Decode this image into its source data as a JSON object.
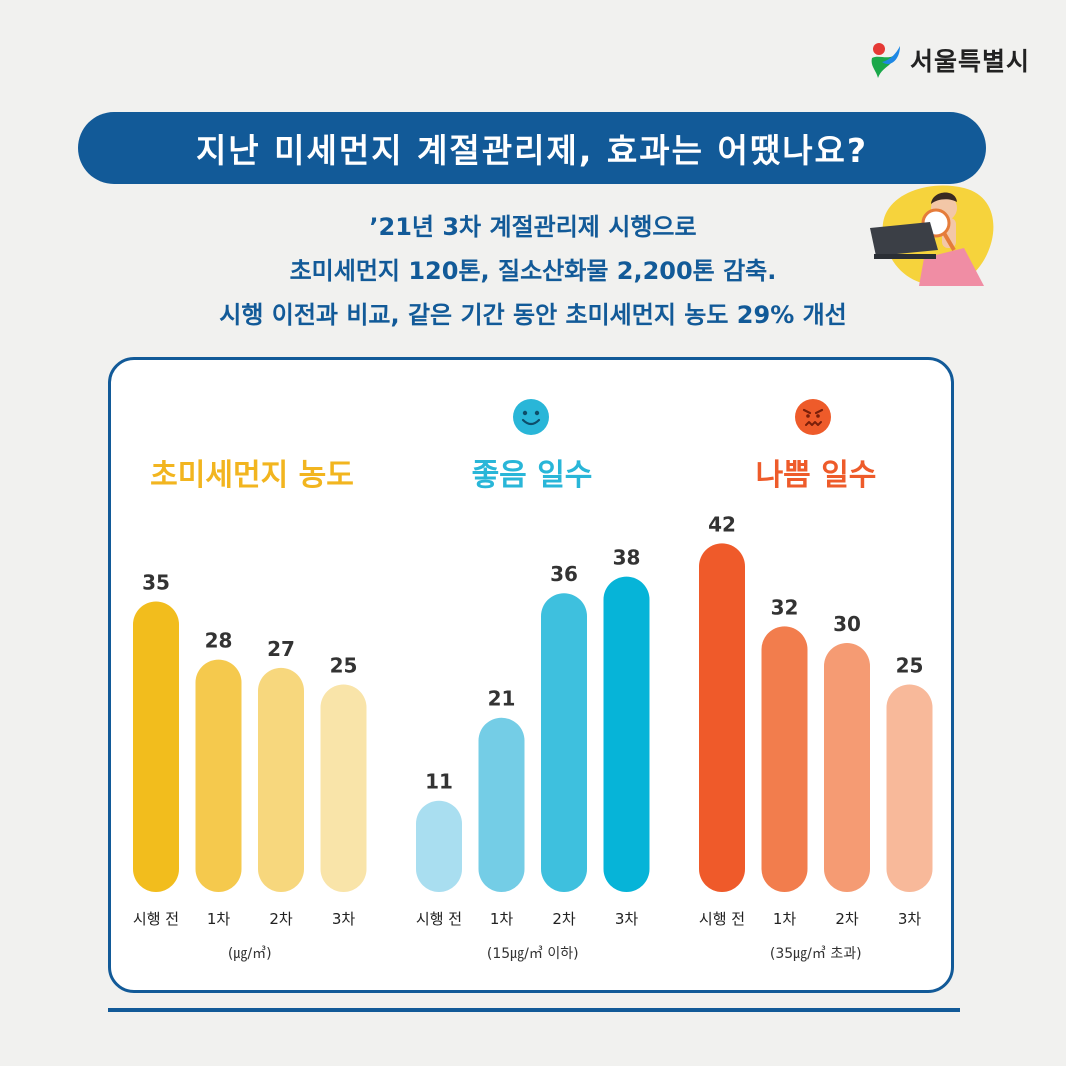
{
  "logo": {
    "text": "서울특별시"
  },
  "banner": {
    "title": "지난 미세먼지 계절관리제, 효과는 어땠나요?"
  },
  "subtitle": {
    "line1": "’21년 3차 계절관리제 시행으로",
    "line2": "초미세먼지 120톤, 질소산화물 2,200톤 감축.",
    "line3": "시행 이전과 비교, 같은 기간 동안 초미세먼지 농도 29% 개선"
  },
  "chart_data": [
    {
      "type": "bar",
      "title": "초미세먼지 농도",
      "categories": [
        "시행 전",
        "1차",
        "2차",
        "3차"
      ],
      "values": [
        35,
        28,
        27,
        25
      ],
      "unit_note": "(㎍/㎥)",
      "colors": [
        "#f2bd1d",
        "#f5c94d",
        "#f7d77d",
        "#f9e4a9"
      ],
      "title_color": "#f2b51f"
    },
    {
      "type": "bar",
      "title": "좋음 일수",
      "categories": [
        "시행 전",
        "1차",
        "2차",
        "3차"
      ],
      "values": [
        11,
        21,
        36,
        38
      ],
      "unit_note": "(15㎍/㎥ 이하)",
      "colors": [
        "#a9def0",
        "#74cde6",
        "#3ec0de",
        "#06b4d8"
      ],
      "title_color": "#29b6d8"
    },
    {
      "type": "bar",
      "title": "나쁨 일수",
      "categories": [
        "시행 전",
        "1차",
        "2차",
        "3차"
      ],
      "values": [
        42,
        32,
        30,
        25
      ],
      "unit_note": "(35㎍/㎥ 초과)",
      "colors": [
        "#ef5a2a",
        "#f27d4d",
        "#f59b73",
        "#f8b99a"
      ],
      "title_color": "#ee5b2a"
    }
  ]
}
